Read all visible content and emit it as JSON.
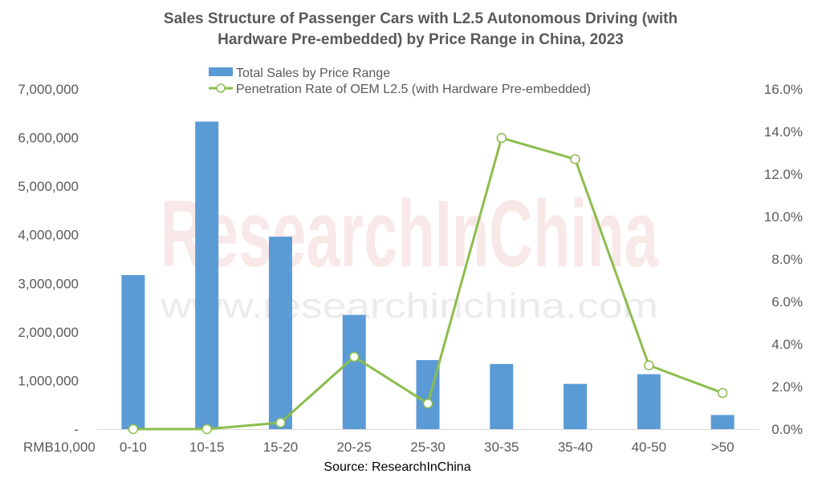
{
  "chart_data": {
    "type": "bar",
    "title_lines": [
      "Sales Structure of Passenger Cars with L2.5  Autonomous Driving (with",
      "Hardware Pre-embedded) by Price Range in China, 2023"
    ],
    "categories": [
      "0-10",
      "10-15",
      "15-20",
      "20-25",
      "25-30",
      "30-35",
      "35-40",
      "40-50",
      ">50"
    ],
    "x_unit_label": "RMB10,000",
    "series": [
      {
        "name": "Total Sales by Price Range",
        "type": "bar",
        "axis": "left",
        "color": "#5b9bd5",
        "values": [
          3170000,
          6330000,
          3960000,
          2350000,
          1420000,
          1340000,
          930000,
          1130000,
          290000
        ]
      },
      {
        "name": "Penetration Rate of OEM L2.5 (with Hardware Pre-embedded)",
        "type": "line",
        "axis": "right",
        "color": "#8cbd4e",
        "values": [
          0.0,
          0.0,
          0.3,
          3.4,
          1.2,
          13.7,
          12.7,
          3.0,
          1.7
        ]
      }
    ],
    "y_left": {
      "ylim": [
        0,
        7000000
      ],
      "ticks": [
        "-",
        "1,000,000",
        "2,000,000",
        "3,000,000",
        "4,000,000",
        "5,000,000",
        "6,000,000",
        "7,000,000"
      ]
    },
    "y_right": {
      "ylim": [
        0,
        16
      ],
      "ticks": [
        "0.0%",
        "2.0%",
        "4.0%",
        "6.0%",
        "8.0%",
        "10.0%",
        "12.0%",
        "14.0%",
        "16.0%"
      ]
    },
    "grid": false,
    "legend_position": "top-center",
    "source": "Source: ResearchInChina",
    "watermark": {
      "logo_text": "ResearchInChina",
      "url_text": "www.researchinchina.com"
    }
  }
}
